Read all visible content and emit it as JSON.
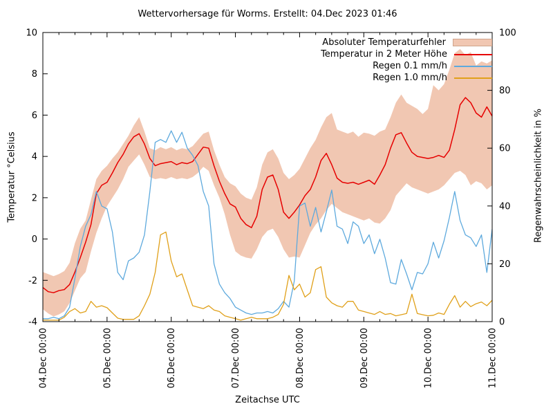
{
  "window": {
    "title": "Wettervorhersage für Worms. Erstellt: 04.Dec 2023 01:46"
  },
  "chart_data": {
    "type": "line",
    "title": "Wettervorhersage für Worms. Erstellt: 04.Dec 2023 01:46",
    "xlabel": "Zeitachse UTC",
    "ylabel_left": "Temperatur °Celsius",
    "ylabel_right": "Regenwahrscheinlichkeit in %",
    "grid": false,
    "legend_position": "top-right-inside",
    "x_start_label": "04.Dec 00:00",
    "x_end_label": "11.Dec 00:00",
    "x_total_hours": 168,
    "x_step_hours": 2,
    "x_minor_tick_hours": 6,
    "x_major_tick_hours": 24,
    "x_tick_labels": [
      "04.Dec 00:00",
      "05.Dec 00:00",
      "06.Dec 00:00",
      "07.Dec 00:00",
      "08.Dec 00:00",
      "09.Dec 00:00",
      "10.Dec 00:00",
      "11.Dec 00:00"
    ],
    "y_left": {
      "min": -4,
      "max": 10,
      "ticks": [
        10,
        8,
        6,
        4,
        2,
        0,
        -2,
        -4
      ]
    },
    "y_right": {
      "min": 0,
      "max": 100,
      "ticks": [
        100,
        80,
        60,
        40,
        20,
        0
      ]
    },
    "colors": {
      "band_fill": "#f1c7b2",
      "band_border": "#cfa48c",
      "temperature": "#e60000",
      "rain_01": "#5da9dd",
      "rain_10": "#e0a019",
      "axis": "#000000"
    },
    "series": [
      {
        "name": "Absoluter Temperaturfehler",
        "type": "band",
        "axis": "left",
        "color": "#f1c7b2",
        "upper": [
          -1.6,
          -1.7,
          -1.8,
          -1.7,
          -1.55,
          -1.15,
          -0.2,
          0.5,
          0.9,
          1.9,
          2.9,
          3.3,
          3.55,
          3.9,
          4.2,
          4.6,
          5.0,
          5.5,
          5.9,
          5.2,
          4.4,
          4.3,
          4.45,
          4.35,
          4.45,
          4.3,
          4.4,
          4.35,
          4.5,
          4.8,
          5.1,
          5.2,
          4.3,
          3.6,
          3.0,
          2.7,
          2.55,
          2.2,
          2.0,
          1.9,
          2.5,
          3.6,
          4.2,
          4.35,
          3.9,
          3.2,
          2.9,
          3.1,
          3.4,
          3.9,
          4.4,
          4.8,
          5.4,
          5.9,
          6.1,
          5.3,
          5.2,
          5.1,
          5.2,
          4.95,
          5.15,
          5.1,
          5.0,
          5.2,
          5.3,
          5.9,
          6.6,
          7.0,
          6.6,
          6.45,
          6.3,
          6.05,
          6.3,
          7.45,
          7.2,
          7.5,
          8.2,
          9.0,
          9.2,
          8.9,
          9.05,
          8.4,
          8.6,
          8.5,
          8.65
        ],
        "lower": [
          -3.4,
          -3.6,
          -3.75,
          -3.65,
          -3.5,
          -3.1,
          -2.5,
          -1.9,
          -1.6,
          -0.6,
          0.3,
          1.0,
          1.6,
          2.0,
          2.4,
          2.9,
          3.5,
          3.8,
          4.1,
          3.6,
          3.0,
          2.9,
          2.95,
          2.9,
          3.0,
          2.9,
          2.95,
          2.9,
          3.0,
          3.2,
          3.5,
          3.3,
          2.6,
          2.0,
          1.2,
          0.2,
          -0.6,
          -0.8,
          -0.9,
          -0.95,
          -0.5,
          0.1,
          0.4,
          0.5,
          0.1,
          -0.5,
          -0.9,
          -0.85,
          -0.9,
          -0.3,
          0.3,
          0.7,
          1.0,
          1.4,
          1.7,
          1.5,
          1.3,
          1.2,
          1.1,
          1.0,
          0.9,
          1.0,
          0.8,
          0.75,
          1.0,
          1.4,
          2.1,
          2.4,
          2.7,
          2.5,
          2.4,
          2.3,
          2.2,
          2.3,
          2.4,
          2.6,
          2.9,
          3.2,
          3.3,
          3.1,
          2.6,
          2.8,
          2.7,
          2.4,
          2.6
        ]
      },
      {
        "name": "Temperatur in 2 Meter Höhe",
        "type": "line",
        "axis": "left",
        "color": "#e60000",
        "values": [
          -2.35,
          -2.55,
          -2.6,
          -2.5,
          -2.45,
          -2.2,
          -1.6,
          -0.9,
          -0.15,
          0.7,
          2.2,
          2.6,
          2.75,
          3.2,
          3.7,
          4.1,
          4.6,
          4.95,
          5.1,
          4.6,
          3.9,
          3.55,
          3.65,
          3.7,
          3.75,
          3.6,
          3.7,
          3.65,
          3.75,
          4.1,
          4.45,
          4.4,
          3.55,
          2.8,
          2.2,
          1.7,
          1.55,
          1.0,
          0.7,
          0.55,
          1.1,
          2.4,
          3.0,
          3.1,
          2.4,
          1.3,
          1.0,
          1.3,
          1.65,
          2.1,
          2.4,
          3.0,
          3.8,
          4.15,
          3.6,
          2.95,
          2.75,
          2.7,
          2.75,
          2.65,
          2.75,
          2.85,
          2.65,
          3.1,
          3.6,
          4.4,
          5.05,
          5.15,
          4.65,
          4.2,
          4.0,
          3.95,
          3.9,
          3.95,
          4.05,
          3.95,
          4.3,
          5.3,
          6.5,
          6.85,
          6.6,
          6.1,
          5.9,
          6.4,
          5.95
        ]
      },
      {
        "name": "Regen 0.1 mm/h",
        "type": "line",
        "axis": "right",
        "color": "#5da9dd",
        "values": [
          1,
          1,
          1.5,
          1,
          2,
          5,
          15,
          26,
          33,
          37,
          45,
          40,
          39,
          31,
          17,
          14.5,
          21,
          22,
          24,
          30,
          45,
          62,
          63,
          62,
          66,
          62,
          65.5,
          60,
          57.5,
          54,
          45,
          40,
          20,
          13,
          10,
          8,
          5,
          4,
          3,
          2.5,
          3,
          3,
          3.5,
          3,
          4.5,
          7,
          5,
          14,
          40,
          41,
          33,
          39.5,
          31,
          38,
          45.5,
          33,
          32,
          27,
          34.5,
          33,
          27,
          30,
          23.5,
          28.5,
          22,
          13.5,
          13,
          21.5,
          16.5,
          11,
          17,
          16.5,
          20,
          27.5,
          22,
          28,
          36,
          45,
          35,
          30,
          29,
          26,
          30,
          17,
          32
        ]
      },
      {
        "name": "Regen 1.0 mm/h",
        "type": "line",
        "axis": "right",
        "color": "#e0a019",
        "values": [
          0.5,
          0.5,
          0.5,
          0.5,
          1.5,
          3.5,
          4.5,
          3,
          3.5,
          7,
          5,
          5.5,
          4.8,
          3,
          1.2,
          0.8,
          0.8,
          0.8,
          2,
          5.5,
          9.5,
          17,
          30,
          31,
          21,
          15.5,
          16.5,
          11,
          5.5,
          5,
          4.5,
          5.5,
          4,
          3.5,
          2,
          1.5,
          1,
          0.5,
          1,
          1.5,
          1,
          1,
          1,
          1.5,
          2.5,
          6,
          16,
          11,
          13,
          8.5,
          10,
          18,
          19,
          8.5,
          6.5,
          5.5,
          5,
          7,
          7,
          4,
          3.5,
          3,
          2.5,
          3.5,
          2.5,
          2.8,
          2,
          2.4,
          2.8,
          9.5,
          2.8,
          2.4,
          2,
          2.2,
          3,
          2.5,
          6,
          9,
          5,
          7,
          5.2,
          6.2,
          6.8,
          5.5,
          7.4
        ]
      }
    ]
  }
}
